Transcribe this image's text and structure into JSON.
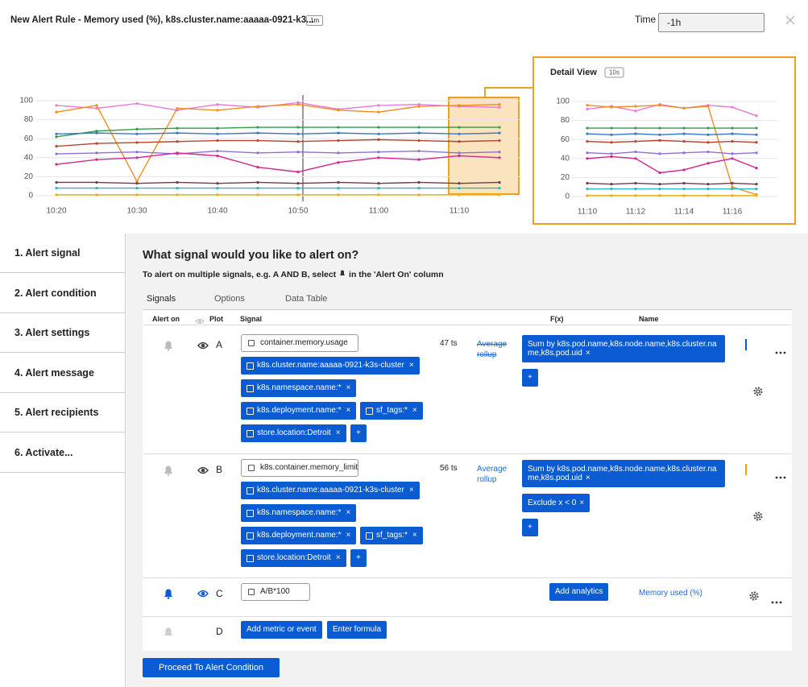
{
  "header": {
    "title": "New Alert Rule - Memory used (%), k8s.cluster.name:aaaaa-0921-k3...",
    "badge": "1m",
    "time_label": "Time",
    "time_value": "-1h"
  },
  "main_chart": {
    "type": "line",
    "categories": [
      "10:20",
      null,
      "10:30",
      null,
      "10:40",
      null,
      "10:50",
      null,
      "11:00",
      null,
      "11:10",
      null
    ],
    "ylim": [
      0,
      100
    ],
    "yticks": [
      0,
      20,
      40,
      60,
      80,
      100
    ],
    "grid": true,
    "series": [
      {
        "color": "#e87ad9",
        "values": [
          95,
          92,
          97,
          90,
          96,
          93,
          98,
          91,
          95,
          96,
          94,
          93
        ]
      },
      {
        "color": "#f28c1b",
        "values": [
          88,
          95,
          15,
          92,
          90,
          94,
          96,
          90,
          88,
          94,
          95,
          96
        ]
      },
      {
        "color": "#2e9e4a",
        "values": [
          62,
          68,
          70,
          71,
          71,
          72,
          72,
          72,
          72,
          72,
          72,
          72
        ]
      },
      {
        "color": "#3a78c8",
        "values": [
          65,
          66,
          65,
          66,
          65,
          66,
          65,
          66,
          65,
          66,
          65,
          66
        ]
      },
      {
        "color": "#b8452f",
        "values": [
          52,
          55,
          56,
          57,
          58,
          58,
          57,
          58,
          59,
          58,
          57,
          58
        ]
      },
      {
        "color": "#8f6fd6",
        "values": [
          44,
          45,
          46,
          44,
          47,
          45,
          46,
          45,
          46,
          47,
          45,
          46
        ]
      },
      {
        "color": "#d6248f",
        "values": [
          33,
          38,
          40,
          45,
          42,
          30,
          25,
          35,
          40,
          38,
          42,
          40
        ]
      },
      {
        "color": "#6b3f4f",
        "values": [
          14,
          14,
          13,
          14,
          13,
          14,
          13,
          14,
          13,
          14,
          13,
          14
        ]
      },
      {
        "color": "#2ab3c0",
        "values": [
          8,
          8,
          8,
          8,
          8,
          8,
          8,
          8,
          8,
          8,
          8,
          8
        ]
      },
      {
        "color": "#e8b10d",
        "values": [
          1,
          1,
          1,
          1,
          1,
          1,
          1,
          1,
          1,
          1,
          1,
          1
        ]
      }
    ]
  },
  "detail_chart": {
    "type": "line",
    "title": "Detail View",
    "badge": "10s",
    "categories": [
      "11:10",
      null,
      "11:12",
      null,
      "11:14",
      null,
      "11:16",
      null
    ],
    "ylim": [
      0,
      100
    ],
    "yticks": [
      0,
      20,
      40,
      60,
      80,
      100
    ],
    "grid": true,
    "series": [
      {
        "color": "#e87ad9",
        "values": [
          92,
          95,
          90,
          97,
          93,
          96,
          94,
          85
        ]
      },
      {
        "color": "#f28c1b",
        "values": [
          96,
          94,
          95,
          96,
          93,
          95,
          10,
          2
        ]
      },
      {
        "color": "#2e9e4a",
        "values": [
          72,
          72,
          72,
          72,
          72,
          72,
          72,
          72
        ]
      },
      {
        "color": "#3a78c8",
        "values": [
          66,
          65,
          66,
          65,
          66,
          65,
          66,
          65
        ]
      },
      {
        "color": "#b8452f",
        "values": [
          58,
          57,
          58,
          59,
          58,
          57,
          58,
          57
        ]
      },
      {
        "color": "#8f6fd6",
        "values": [
          46,
          45,
          47,
          45,
          46,
          47,
          45,
          46
        ]
      },
      {
        "color": "#d6248f",
        "values": [
          40,
          42,
          40,
          25,
          28,
          35,
          40,
          30
        ]
      },
      {
        "color": "#6b3f4f",
        "values": [
          14,
          13,
          14,
          13,
          14,
          13,
          14,
          13
        ]
      },
      {
        "color": "#2ab3c0",
        "values": [
          8,
          8,
          8,
          8,
          8,
          8,
          8,
          8
        ]
      },
      {
        "color": "#e8b10d",
        "values": [
          1,
          1,
          1,
          1,
          1,
          1,
          1,
          1
        ]
      }
    ]
  },
  "steps": [
    "1.  Alert signal",
    "2.  Alert condition",
    "3.  Alert settings",
    "4.  Alert message",
    "5.  Alert recipients",
    "6.  Activate..."
  ],
  "form": {
    "heading": "What signal would you like to alert on?",
    "subheading": "To alert on multiple signals, e.g. A AND B, select",
    "subheading_end": "in the 'Alert On' column",
    "tabs": [
      "Signals",
      "Options",
      "Data Table"
    ],
    "columns": [
      "Alert on",
      "Plot",
      "Signal",
      "F(x)",
      "Name"
    ],
    "plus": "+",
    "remove": "×",
    "rows": [
      {
        "letter": "A",
        "alert_on": false,
        "color": "#0b5bd3",
        "signal": "container.memory.usage",
        "filter_lines": [
          [
            "k8s.cluster.name:aaaaa-0921-k3s-cluster"
          ],
          [
            "k8s.namespace.name:*"
          ],
          [
            "k8s.deployment.name:*",
            "sf_tags:*"
          ],
          [
            "store.location:Detroit"
          ]
        ],
        "ts": "47 ts",
        "rollup": "Average rollup",
        "rollup_struck": true,
        "functions": [
          "Sum by k8s.pod.name,k8s.node.name,k8s.cluster.name,k8s.pod.uid"
        ]
      },
      {
        "letter": "B",
        "alert_on": false,
        "color": "#f0a500",
        "signal": "k8s.container.memory_limit",
        "filter_lines": [
          [
            "k8s.cluster.name:aaaaa-0921-k3s-cluster"
          ],
          [
            "k8s.namespace.name:*"
          ],
          [
            "k8s.deployment.name:*",
            "sf_tags:*"
          ],
          [
            "store.location:Detroit"
          ]
        ],
        "ts": "56 ts",
        "rollup": "Average rollup",
        "rollup_struck": false,
        "functions": [
          "Sum by k8s.pod.name,k8s.node.name,k8s.cluster.name,k8s.pod.uid",
          "Exclude x < 0"
        ]
      }
    ],
    "formula_row": {
      "letter": "C",
      "alert_on": true,
      "formula": "A/B*100",
      "button": "Add analytics",
      "name": "Memory used (%)"
    },
    "empty_row": {
      "letter": "D",
      "buttons": [
        "Add metric or event",
        "Enter formula"
      ]
    },
    "proceed": "Proceed To Alert Condition"
  }
}
